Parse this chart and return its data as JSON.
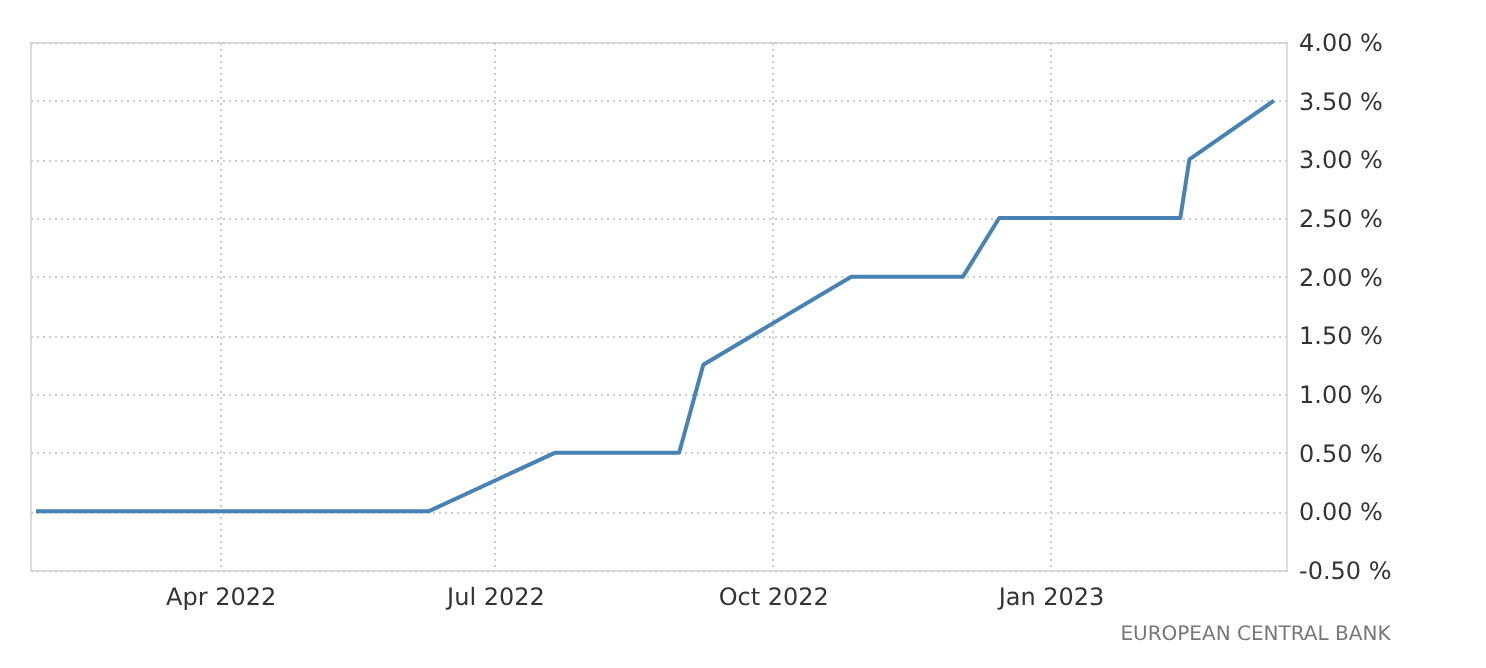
{
  "chart_data": {
    "type": "line",
    "x": [
      "2022-01-30",
      "2022-06-09",
      "2022-07-21",
      "2022-08-31",
      "2022-09-08",
      "2022-10-27",
      "2022-12-03",
      "2022-12-15",
      "2023-02-13",
      "2023-02-16",
      "2023-03-16"
    ],
    "series": [
      {
        "color": "#4682b4",
        "values": [
          0,
          0,
          0.5,
          0.5,
          1.25,
          2.0,
          2.0,
          2.5,
          2.5,
          3.0,
          3.5
        ]
      }
    ],
    "xlim": [
      "2022-01-28",
      "2023-03-20"
    ],
    "xticks": [
      {
        "value": "2022-04-01",
        "label": "Apr 2022"
      },
      {
        "value": "2022-07-01",
        "label": "Jul 2022"
      },
      {
        "value": "2022-10-01",
        "label": "Oct 2022"
      },
      {
        "value": "2023-01-01",
        "label": "Jan 2023"
      }
    ],
    "ylim": [
      -0.5,
      4.0
    ],
    "yticks": [
      {
        "value": -0.5,
        "label": "-0.50 %"
      },
      {
        "value": 0,
        "label": "0.00 %"
      },
      {
        "value": 0.5,
        "label": "0.50 %"
      },
      {
        "value": 1.0,
        "label": "1.00 %"
      },
      {
        "value": 1.5,
        "label": "1.50 %"
      },
      {
        "value": 2.0,
        "label": "2.00 %"
      },
      {
        "value": 2.5,
        "label": "2.50 %"
      },
      {
        "value": 3.0,
        "label": "3.00 %"
      },
      {
        "value": 3.5,
        "label": "3.50 %"
      },
      {
        "value": 4.0,
        "label": "4.00 %"
      }
    ],
    "grid": true,
    "line_style": "solid",
    "annotations": [
      "EUROPEAN CENTRAL BANK"
    ]
  }
}
